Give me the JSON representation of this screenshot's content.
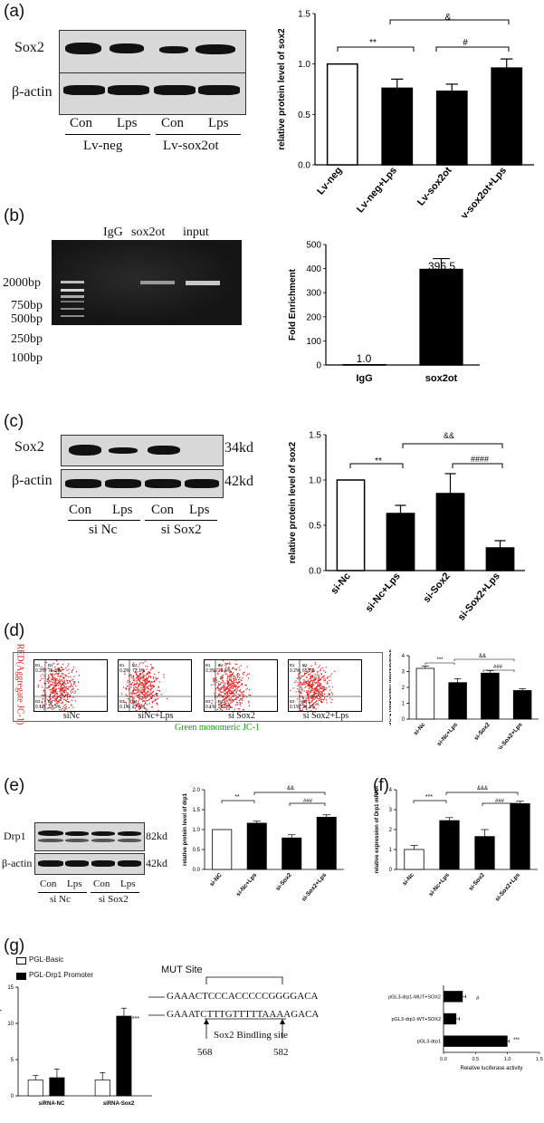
{
  "panels": {
    "a": {
      "letter": "(a)",
      "blot": {
        "rows": [
          "Sox2",
          "β-actin"
        ],
        "lanes": [
          "Con",
          "Lps",
          "Con",
          "Lps"
        ],
        "groups": [
          "Lv-neg",
          "Lv-sox2ot"
        ]
      },
      "sig": [
        "**",
        "&",
        "#"
      ]
    },
    "b": {
      "letter": "(b)",
      "gel_lanes": [
        "IgG",
        "sox2ot",
        "input"
      ],
      "ladder": [
        "2000bp",
        "750bp",
        "500bp",
        "250bp",
        "100bp"
      ],
      "bar_labels": [
        "1.0",
        "396.5"
      ]
    },
    "c": {
      "letter": "(c)",
      "blot": {
        "rows": [
          "Sox2",
          "β-actin"
        ],
        "sizes": [
          "34kd",
          "42kd"
        ],
        "lanes": [
          "Con",
          "Lps",
          "Con",
          "Lps"
        ],
        "groups": [
          "si Nc",
          "si Sox2"
        ]
      },
      "sig": [
        "**",
        "&&",
        "####"
      ]
    },
    "d": {
      "letter": "(d)",
      "ylabel": "RED(Aggregate JC-1)",
      "xlabel": "Green monomeric JC-1",
      "facs": [
        {
          "name": "siNc",
          "q": [
            "0.3%",
            "76.3%",
            "0.1%",
            "23.3%"
          ]
        },
        {
          "name": "siNc+Lps",
          "q": [
            "0.2%",
            "72.1%",
            "0.1%",
            "27.6%"
          ]
        },
        {
          "name": "si Sox2",
          "q": [
            "0.3%",
            "73.6%",
            "0.1%",
            "25.2%"
          ]
        },
        {
          "name": "si Sox2+Lps",
          "q": [
            "0.2%",
            "65.7%",
            "0.1%",
            "34.1%"
          ]
        }
      ],
      "quad_labels": [
        "B1",
        "B2",
        "B3",
        "B4"
      ],
      "sig": [
        "***",
        "&&",
        "###"
      ]
    },
    "e": {
      "letter": "(e)",
      "blot": {
        "rows": [
          "Drp1",
          "β-actin"
        ],
        "sizes": [
          "82kd",
          "42kd"
        ],
        "lanes": [
          "Con",
          "Lps",
          "Con",
          "Lps"
        ],
        "groups": [
          "si Nc",
          "si Sox2"
        ]
      },
      "sig": [
        "**",
        "&&",
        "###"
      ]
    },
    "f": {
      "letter": "(f)",
      "sig": [
        "***",
        "&&&",
        "###"
      ]
    },
    "g": {
      "letter": "(g)",
      "legend": [
        "PGL-Basic",
        "PGL-Drp1 Promoter"
      ],
      "sig": [
        "***"
      ],
      "seq_top": "GAAACTCCCACCCCCGGGGACA",
      "seq_bottom": "GAAATCTTTGTTTTTAAAAGACA",
      "mut_label": "MUT Site",
      "binding_label": "Sox2 Bindling site",
      "pos": [
        "568",
        "582"
      ],
      "hbar_sig": [
        "#",
        "***"
      ]
    }
  },
  "chart_data": [
    {
      "type": "bar",
      "id": "a",
      "categories": [
        "Lv-neg",
        "Lv-neg+Lps",
        "Lv-sox2ot",
        "Lv-sox2ot+Lps"
      ],
      "values": [
        1.0,
        0.76,
        0.73,
        0.96
      ],
      "errors": [
        0,
        0.09,
        0.07,
        0.09
      ],
      "ylabel": "relative protein level of sox2",
      "ylim": [
        0,
        1.5
      ],
      "yticks": [
        "0.0",
        "0.5",
        "1.0",
        "1.5"
      ]
    },
    {
      "type": "bar",
      "id": "b",
      "categories": [
        "IgG",
        "sox2ot"
      ],
      "values": [
        1.0,
        396.5
      ],
      "errors": [
        0,
        45
      ],
      "ylabel": "Fold Enrichment",
      "ylim": [
        0,
        500
      ],
      "yticks": [
        "0",
        "100",
        "200",
        "300",
        "400",
        "500"
      ]
    },
    {
      "type": "bar",
      "id": "c",
      "categories": [
        "si-Nc",
        "si-Nc+Lps",
        "si-Sox2",
        "si-Sox2+Lps"
      ],
      "values": [
        1.0,
        0.63,
        0.85,
        0.25
      ],
      "errors": [
        0,
        0.09,
        0.22,
        0.08
      ],
      "ylabel": "relative protein level of sox2",
      "ylim": [
        0,
        1.5
      ],
      "yticks": [
        "0.0",
        "0.5",
        "1.0",
        "1.5"
      ]
    },
    {
      "type": "bar",
      "id": "d",
      "categories": [
        "si-Nc",
        "si-Nc+Lps",
        "si-Sox2",
        "si-Sox2+Lps"
      ],
      "values": [
        3.2,
        2.3,
        2.9,
        1.8
      ],
      "errors": [
        0.15,
        0.25,
        0.15,
        0.12
      ],
      "ylabel": "JC-1 Red/Green fluorescence",
      "ylim": [
        0,
        4
      ],
      "yticks": [
        "0",
        "1",
        "2",
        "3",
        "4"
      ]
    },
    {
      "type": "bar",
      "id": "e",
      "categories": [
        "si-NC",
        "si-Nc+Lps",
        "si-Sox2",
        "si-Sox2+Lps"
      ],
      "values": [
        1.0,
        1.16,
        0.79,
        1.31
      ],
      "errors": [
        0,
        0.05,
        0.08,
        0.06
      ],
      "ylabel": "relative protein level of drp1",
      "ylim": [
        0,
        2.0
      ],
      "yticks": [
        "0.0",
        "0.5",
        "1.0",
        "1.5",
        "2.0"
      ]
    },
    {
      "type": "bar",
      "id": "f",
      "categories": [
        "si-Nc",
        "si-Nc+Lps",
        "si-Sox2",
        "si-Sox2+Lps"
      ],
      "values": [
        1.0,
        2.45,
        1.65,
        3.3
      ],
      "errors": [
        0.2,
        0.15,
        0.35,
        0.12
      ],
      "ylabel": "relative expression of Drp1 mRNA",
      "ylim": [
        0,
        4
      ],
      "yticks": [
        "0",
        "1",
        "2",
        "3",
        "4"
      ]
    },
    {
      "type": "bar",
      "id": "g1",
      "categories": [
        "siRNA-NC",
        "siRNA-Sox2"
      ],
      "series": [
        {
          "name": "PGL-Basic",
          "values": [
            2.2,
            2.2
          ],
          "errors": [
            0.6,
            1.0
          ]
        },
        {
          "name": "PGL-Drp1 Promoter",
          "values": [
            2.5,
            11.0
          ],
          "errors": [
            1.2,
            1.1
          ]
        }
      ],
      "ylabel": "relative luciferase activity",
      "ylim": [
        0,
        15
      ],
      "yticks": [
        "0",
        "5",
        "10",
        "15"
      ]
    },
    {
      "type": "bar",
      "id": "g2",
      "orientation": "horizontal",
      "categories": [
        "pGL3-drp1-MUT+SOX2",
        "pGL3-drp1-WT+SOX2",
        "pGL3-drp1"
      ],
      "values": [
        0.3,
        0.2,
        1.0
      ],
      "errors": [
        0.05,
        0.05,
        0.03
      ],
      "xlabel": "Relative luciferase activity",
      "xlim": [
        0,
        1.5
      ],
      "xticks": [
        "0.0",
        "0.5",
        "1.0",
        "1.5"
      ]
    }
  ]
}
